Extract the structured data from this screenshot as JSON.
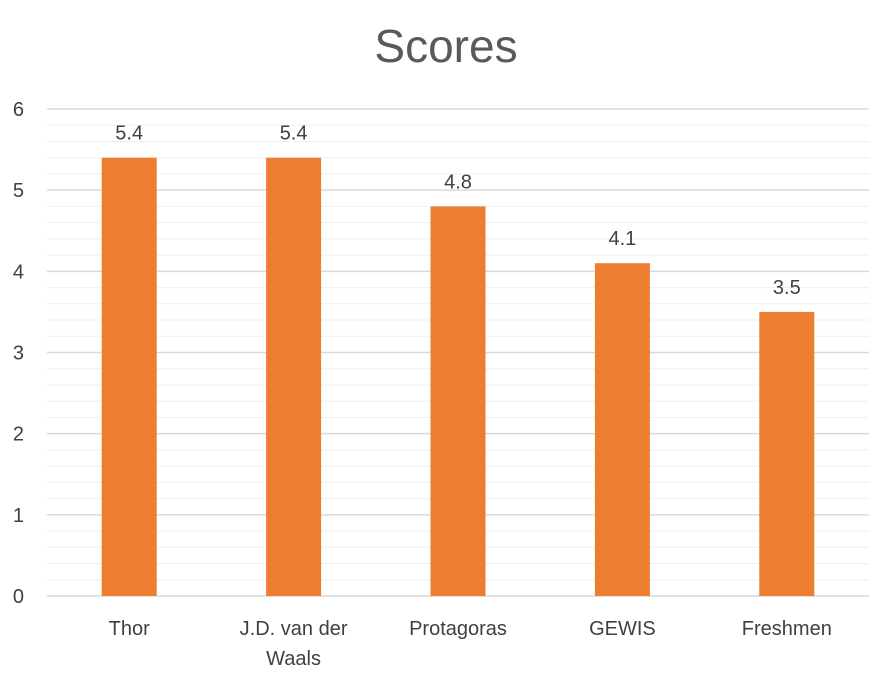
{
  "chart_data": {
    "type": "bar",
    "title": "Scores",
    "categories": [
      "Thor",
      "J.D. van der Waals",
      "Protagoras",
      "GEWIS",
      "Freshmen"
    ],
    "category_lines": [
      [
        "Thor"
      ],
      [
        "J.D. van der",
        "Waals"
      ],
      [
        "Protagoras"
      ],
      [
        "GEWIS"
      ],
      [
        "Freshmen"
      ]
    ],
    "values": [
      5.4,
      5.4,
      4.8,
      4.1,
      3.5
    ],
    "value_labels": [
      "5.4",
      "5.4",
      "4.8",
      "4.1",
      "3.5"
    ],
    "ylim": [
      0,
      6
    ],
    "yticks": [
      0,
      1,
      2,
      3,
      4,
      5,
      6
    ],
    "minor_grid_step": 0.2,
    "xlabel": "",
    "ylabel": "",
    "legend": "none",
    "bar_color": "#ED7D31",
    "major_grid_color": "#D9D9D9",
    "minor_grid_color": "#EFEFEF"
  }
}
